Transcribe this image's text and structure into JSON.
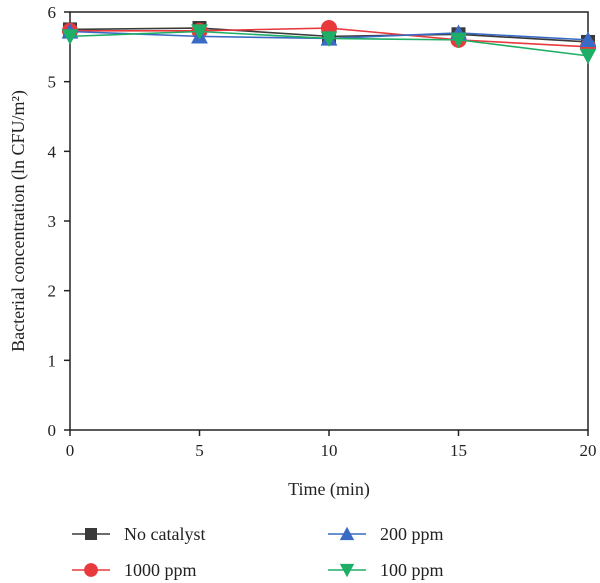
{
  "chart_data": {
    "type": "line",
    "title": "",
    "xlabel": "Time (min)",
    "ylabel": "Bacterial concentration (ln CFU/m²)",
    "xlim": [
      0,
      20
    ],
    "ylim": [
      0,
      6
    ],
    "x_ticks": [
      0,
      5,
      10,
      15,
      20
    ],
    "y_ticks": [
      0,
      1,
      2,
      3,
      4,
      5,
      6
    ],
    "grid": false,
    "legend_position": "bottom",
    "x": [
      0,
      5,
      10,
      15,
      20
    ],
    "series": [
      {
        "name": "No catalyst",
        "values": [
          5.75,
          5.77,
          5.65,
          5.68,
          5.57
        ],
        "color": "#3a3a3a",
        "marker": "square"
      },
      {
        "name": "1000 ppm",
        "values": [
          5.73,
          5.73,
          5.77,
          5.6,
          5.5
        ],
        "color": "#e8393d",
        "marker": "circle"
      },
      {
        "name": "200 ppm",
        "values": [
          5.72,
          5.65,
          5.62,
          5.7,
          5.6
        ],
        "color": "#3a6bc4",
        "marker": "triangle-up"
      },
      {
        "name": "100 ppm",
        "values": [
          5.65,
          5.72,
          5.62,
          5.6,
          5.37
        ],
        "color": "#1fae66",
        "marker": "triangle-down"
      }
    ]
  }
}
